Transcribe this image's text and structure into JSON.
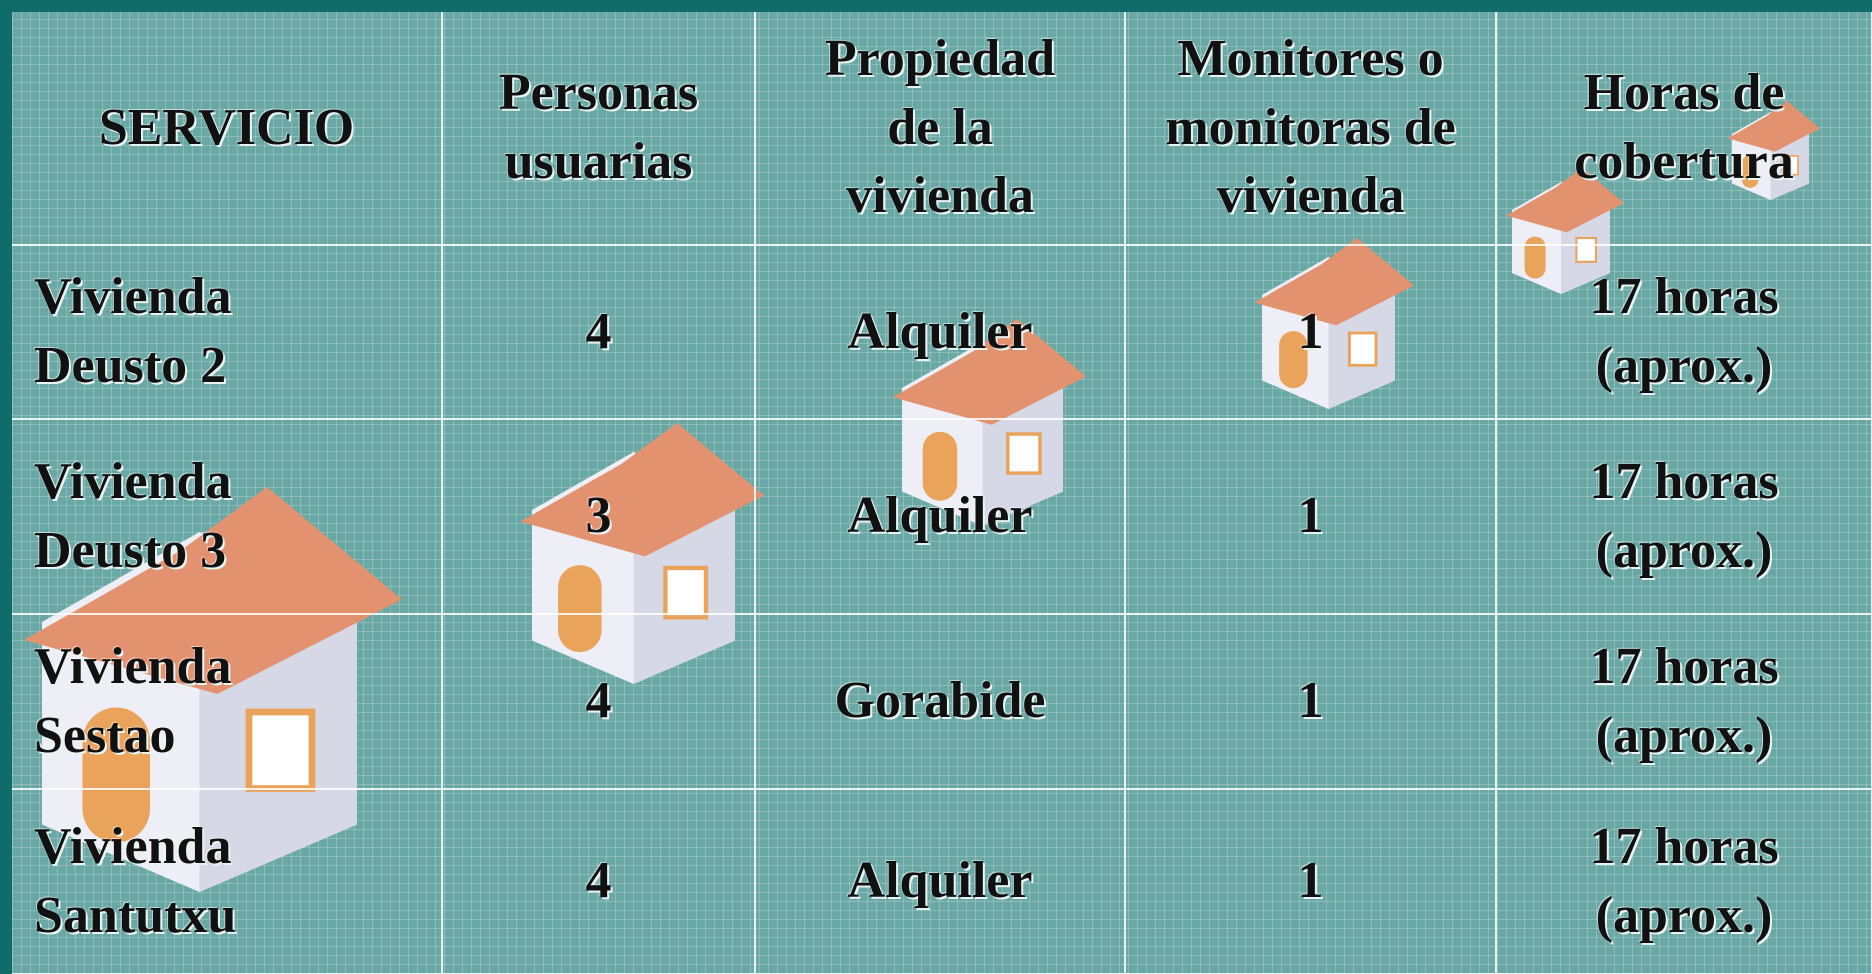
{
  "table": {
    "header": [
      [
        "SERVICIO"
      ],
      [
        "Personas",
        "usuarias"
      ],
      [
        "Propiedad",
        "de la",
        "vivienda"
      ],
      [
        "Monitores o",
        "monitoras de",
        "vivienda"
      ],
      [
        "Horas de",
        "cobertura"
      ]
    ],
    "rows": [
      [
        [
          "Vivienda",
          "Deusto 2"
        ],
        [
          "4"
        ],
        [
          "Alquiler"
        ],
        [
          "1"
        ],
        [
          "17 horas",
          "(aprox.)"
        ]
      ],
      [
        [
          "Vivienda",
          "Deusto 3"
        ],
        [
          "3"
        ],
        [
          "Alquiler"
        ],
        [
          "1"
        ],
        [
          "17 horas",
          "(aprox.)"
        ]
      ],
      [
        [
          "Vivienda",
          "Sestao"
        ],
        [
          "4"
        ],
        [
          "Gorabide"
        ],
        [
          "1"
        ],
        [
          "17 horas",
          "(aprox.)"
        ]
      ],
      [
        [
          "Vivienda",
          "Santutxu"
        ],
        [
          "4"
        ],
        [
          "Alquiler"
        ],
        [
          "1"
        ],
        [
          "17 horas",
          "(aprox.)"
        ]
      ]
    ]
  }
}
